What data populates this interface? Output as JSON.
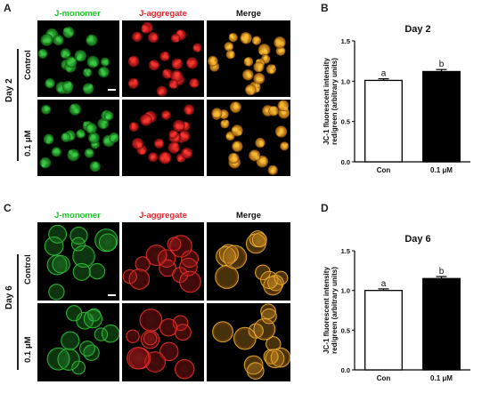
{
  "colors": {
    "green": "#22c22e",
    "red": "#e3262d",
    "black": "#000000",
    "merge": "#f2b21c"
  },
  "top": {
    "panel_letter": "A",
    "col_headers": [
      "J-monomer",
      "J-aggregate",
      "Merge"
    ],
    "row_headers": [
      "Control",
      "0.1 μM"
    ],
    "day": "Day 2"
  },
  "bottom": {
    "panel_letter": "C",
    "col_headers": [
      "J-monomer",
      "J-aggregate",
      "Merge"
    ],
    "row_headers": [
      "Control",
      "0.1 μM"
    ],
    "day": "Day 6"
  },
  "chart_data": [
    {
      "panel_letter": "B",
      "type": "bar",
      "title": "Day 2",
      "ylabel": "JC-1 fluorescent intensity red/green (arbitrary units)",
      "categories": [
        "Con",
        "0.1 μM"
      ],
      "values": [
        1.01,
        1.12
      ],
      "errors": [
        0.02,
        0.025
      ],
      "bar_fill": [
        "#ffffff",
        "#000000"
      ],
      "significance": [
        "a",
        "b"
      ],
      "ylim": [
        0,
        1.5
      ],
      "yticks": [
        "0.0",
        "0.5",
        "1.0",
        "1.5"
      ],
      "grid": false,
      "legend": "none"
    },
    {
      "panel_letter": "D",
      "type": "bar",
      "title": "Day 6",
      "ylabel": "JC-1 fluorescent intensity red/green (arbitrary units)",
      "categories": [
        "Con",
        "0.1 μM"
      ],
      "values": [
        1.0,
        1.15
      ],
      "errors": [
        0.02,
        0.025
      ],
      "bar_fill": [
        "#ffffff",
        "#000000"
      ],
      "significance": [
        "a",
        "b"
      ],
      "ylim": [
        0,
        1.5
      ],
      "yticks": [
        "0.0",
        "0.5",
        "1.0",
        "1.5"
      ],
      "grid": false,
      "legend": "none"
    }
  ]
}
